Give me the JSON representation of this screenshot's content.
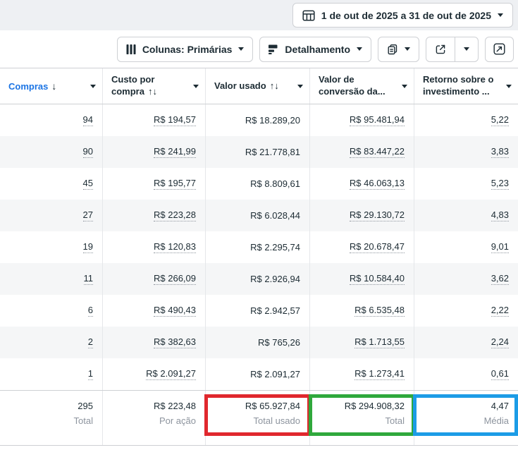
{
  "topbar": {
    "date_range": "1 de out de 2025 a 31 de out de 2025"
  },
  "toolbar": {
    "columns_label": "Colunas: Primárias",
    "breakdown_label": "Detalhamento"
  },
  "table": {
    "headers": [
      {
        "label": "Compras",
        "sort": "↓",
        "active": true
      },
      {
        "label": "Custo por compra",
        "sort": "↑↓",
        "active": false
      },
      {
        "label": "Valor usado",
        "sort": "↑↓",
        "active": false
      },
      {
        "label": "Valor de conversão da...",
        "sort": "",
        "active": false
      },
      {
        "label": "Retorno sobre o investimento ...",
        "sort": "",
        "active": false
      }
    ],
    "underline_columns": [
      true,
      true,
      false,
      true,
      true
    ],
    "rows": [
      [
        "94",
        "R$ 194,57",
        "R$ 18.289,20",
        "R$ 95.481,94",
        "5,22"
      ],
      [
        "90",
        "R$ 241,99",
        "R$ 21.778,81",
        "R$ 83.447,22",
        "3,83"
      ],
      [
        "45",
        "R$ 195,77",
        "R$ 8.809,61",
        "R$ 46.063,13",
        "5,23"
      ],
      [
        "27",
        "R$ 223,28",
        "R$ 6.028,44",
        "R$ 29.130,72",
        "4,83"
      ],
      [
        "19",
        "R$ 120,83",
        "R$ 2.295,74",
        "R$ 20.678,47",
        "9,01"
      ],
      [
        "11",
        "R$ 266,09",
        "R$ 2.926,94",
        "R$ 10.584,40",
        "3,62"
      ],
      [
        "6",
        "R$ 490,43",
        "R$ 2.942,57",
        "R$ 6.535,48",
        "2,22"
      ],
      [
        "2",
        "R$ 382,63",
        "R$ 765,26",
        "R$ 1.713,55",
        "2,24"
      ],
      [
        "1",
        "R$ 2.091,27",
        "R$ 2.091,27",
        "R$ 1.273,41",
        "0,61"
      ]
    ],
    "totals": {
      "values": [
        "295",
        "R$ 223,48",
        "R$ 65.927,84",
        "R$ 294.908,32",
        "4,47"
      ],
      "labels": [
        "Total",
        "Por ação",
        "Total usado",
        "Total",
        "Média"
      ],
      "highlights": [
        null,
        null,
        "#e0282e",
        "#2fa83c",
        "#1c9ce6"
      ]
    }
  },
  "colors": {
    "sorted_column_blue": "#1b74e4",
    "highlight_red": "#e0282e",
    "highlight_green": "#2fa83c",
    "highlight_blue": "#1c9ce6"
  }
}
